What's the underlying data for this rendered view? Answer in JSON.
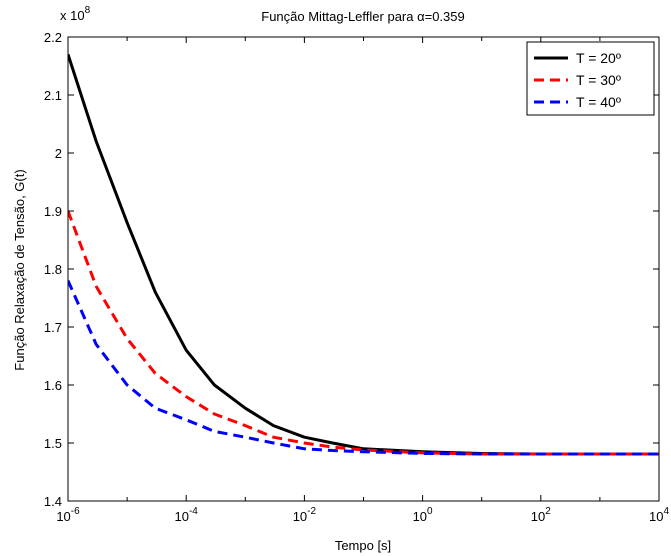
{
  "chart_data": {
    "type": "line",
    "title": "Função Mittag-Leffler para α=0.359",
    "xlabel": "Tempo [s]",
    "ylabel": "Função Relaxação de Tensão, G(t)",
    "x_scale": "log",
    "xlim": [
      1e-06,
      10000.0
    ],
    "ylim": [
      1.4,
      2.2
    ],
    "y_multiplier_label": "x 10",
    "y_multiplier_exponent": "8",
    "x_ticks": [
      {
        "base": "10",
        "exp": "-6"
      },
      {
        "base": "10",
        "exp": "-4"
      },
      {
        "base": "10",
        "exp": "-2"
      },
      {
        "base": "10",
        "exp": "0"
      },
      {
        "base": "10",
        "exp": "2"
      },
      {
        "base": "10",
        "exp": "4"
      }
    ],
    "y_ticks": [
      "1.4",
      "1.5",
      "1.6",
      "1.7",
      "1.8",
      "1.9",
      "2",
      "2.1",
      "2.2"
    ],
    "grid": false,
    "legend_position": "top-right",
    "series": [
      {
        "name": "T = 20º",
        "color": "#000000",
        "dash": "solid",
        "x": [
          1e-06,
          3e-06,
          1e-05,
          3e-05,
          0.0001,
          0.0003,
          0.001,
          0.003,
          0.01,
          0.03,
          0.1,
          1,
          10,
          100,
          1000,
          10000
        ],
        "y": [
          2.17,
          2.02,
          1.88,
          1.76,
          1.66,
          1.6,
          1.56,
          1.53,
          1.51,
          1.5,
          1.49,
          1.485,
          1.482,
          1.481,
          1.481,
          1.481
        ]
      },
      {
        "name": "T = 30º",
        "color": "#ff0000",
        "dash": "dashed",
        "x": [
          1e-06,
          3e-06,
          1e-05,
          3e-05,
          0.0001,
          0.0003,
          0.001,
          0.003,
          0.01,
          0.03,
          0.1,
          1,
          10,
          100,
          1000,
          10000
        ],
        "y": [
          1.9,
          1.77,
          1.68,
          1.62,
          1.58,
          1.55,
          1.53,
          1.51,
          1.5,
          1.493,
          1.488,
          1.483,
          1.481,
          1.481,
          1.481,
          1.481
        ]
      },
      {
        "name": "T = 40º",
        "color": "#0000ff",
        "dash": "dashed",
        "x": [
          1e-06,
          3e-06,
          1e-05,
          3e-05,
          0.0001,
          0.0003,
          0.001,
          0.003,
          0.01,
          0.03,
          0.1,
          1,
          10,
          100,
          1000,
          10000
        ],
        "y": [
          1.78,
          1.67,
          1.6,
          1.56,
          1.54,
          1.52,
          1.51,
          1.5,
          1.49,
          1.487,
          1.485,
          1.482,
          1.481,
          1.481,
          1.481,
          1.481
        ]
      }
    ]
  }
}
